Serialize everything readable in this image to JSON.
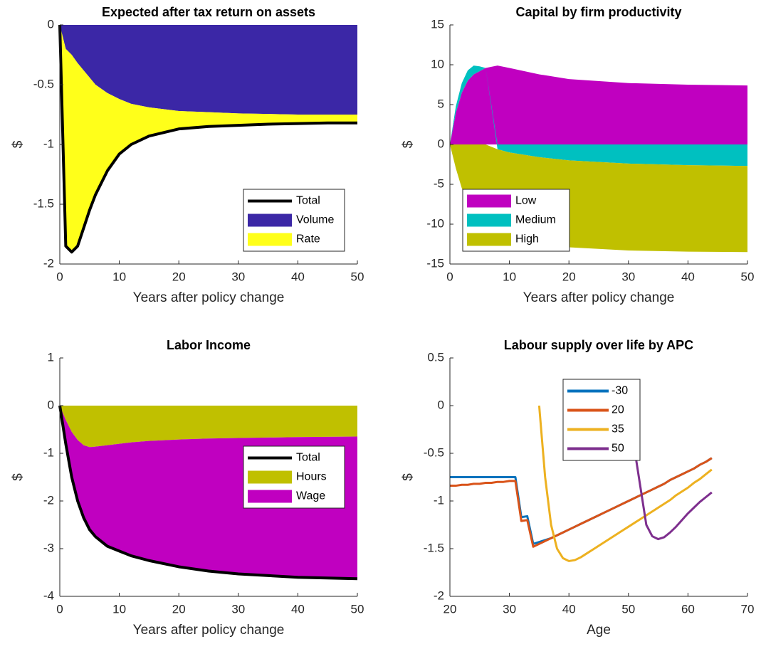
{
  "chart_data": [
    {
      "type": "area",
      "title": "Expected after tax return on assets",
      "xlabel": "Years after policy change",
      "ylabel": "$",
      "x": [
        0,
        1,
        2,
        3,
        4,
        5,
        6,
        8,
        10,
        12,
        15,
        20,
        25,
        30,
        35,
        40,
        45,
        50
      ],
      "series": [
        {
          "name": "Total",
          "type": "line",
          "color": "#000000",
          "values": [
            0,
            -1.85,
            -1.9,
            -1.85,
            -1.7,
            -1.55,
            -1.42,
            -1.22,
            -1.08,
            -1.0,
            -0.93,
            -0.87,
            -0.85,
            -0.84,
            -0.83,
            -0.825,
            -0.82,
            -0.82
          ]
        },
        {
          "name": "Volume",
          "type": "area",
          "color": "#3b27a6",
          "values": [
            0,
            -0.2,
            -0.25,
            -0.32,
            -0.38,
            -0.44,
            -0.5,
            -0.57,
            -0.62,
            -0.66,
            -0.69,
            -0.72,
            -0.73,
            -0.74,
            -0.745,
            -0.75,
            -0.75,
            -0.75
          ]
        },
        {
          "name": "Rate",
          "type": "area",
          "color": "#ffff1a",
          "values": [
            0,
            -1.65,
            -1.65,
            -1.53,
            -1.32,
            -1.11,
            -0.92,
            -0.65,
            -0.46,
            -0.34,
            -0.24,
            -0.15,
            -0.12,
            -0.1,
            -0.085,
            -0.075,
            -0.07,
            -0.07
          ]
        }
      ],
      "xlim": [
        0,
        50
      ],
      "xticks": [
        0,
        10,
        20,
        30,
        40,
        50
      ],
      "ylim": [
        -2,
        0
      ],
      "yticks": [
        -2,
        -1.5,
        -1,
        -0.5,
        0
      ],
      "legend": "lower right"
    },
    {
      "type": "area",
      "title": "Capital by firm productivity",
      "xlabel": "Years after policy change",
      "ylabel": "$",
      "x": [
        0,
        1,
        2,
        3,
        4,
        5,
        6,
        8,
        10,
        15,
        20,
        30,
        40,
        50
      ],
      "series": [
        {
          "name": "Low",
          "type": "area",
          "color": "#c000c0",
          "values": [
            0,
            4,
            6.5,
            8,
            8.8,
            9.2,
            9.6,
            9.9,
            9.6,
            8.8,
            8.2,
            7.7,
            7.5,
            7.4
          ]
        },
        {
          "name": "Medium",
          "type": "area",
          "color": "#00c0c0",
          "values": [
            0,
            0.8,
            1.2,
            1.3,
            1.1,
            0.6,
            0,
            -0.6,
            -1.0,
            -1.6,
            -2.0,
            -2.4,
            -2.6,
            -2.7
          ]
        },
        {
          "name": "High",
          "type": "area",
          "color": "#c0c000",
          "values": [
            0,
            -3,
            -5.5,
            -7,
            -8.2,
            -9,
            -9.8,
            -10.2,
            -10.5,
            -10.8,
            -10.9,
            -10.9,
            -10.85,
            -10.8
          ]
        }
      ],
      "xlim": [
        0,
        50
      ],
      "xticks": [
        0,
        10,
        20,
        30,
        40,
        50
      ],
      "ylim": [
        -15,
        15
      ],
      "yticks": [
        -15,
        -10,
        -5,
        0,
        5,
        10,
        15
      ],
      "legend": "lower left"
    },
    {
      "type": "area",
      "title": "Labor Income",
      "xlabel": "Years after policy change",
      "ylabel": "$",
      "x": [
        0,
        1,
        2,
        3,
        4,
        5,
        6,
        8,
        10,
        12,
        15,
        20,
        25,
        30,
        40,
        50
      ],
      "series": [
        {
          "name": "Total",
          "type": "line",
          "color": "#000000",
          "values": [
            0,
            -0.8,
            -1.5,
            -2.0,
            -2.35,
            -2.6,
            -2.75,
            -2.95,
            -3.05,
            -3.15,
            -3.25,
            -3.38,
            -3.47,
            -3.53,
            -3.6,
            -3.63
          ]
        },
        {
          "name": "Hours",
          "type": "area",
          "color": "#c0c000",
          "values": [
            0,
            -0.3,
            -0.55,
            -0.72,
            -0.83,
            -0.87,
            -0.86,
            -0.83,
            -0.8,
            -0.77,
            -0.74,
            -0.71,
            -0.69,
            -0.68,
            -0.66,
            -0.65
          ]
        },
        {
          "name": "Wage",
          "type": "area",
          "color": "#c000c0",
          "values": [
            0,
            -0.5,
            -0.95,
            -1.28,
            -1.52,
            -1.73,
            -1.89,
            -2.12,
            -2.25,
            -2.38,
            -2.51,
            -2.67,
            -2.78,
            -2.85,
            -2.94,
            -2.98
          ]
        }
      ],
      "xlim": [
        0,
        50
      ],
      "xticks": [
        0,
        10,
        20,
        30,
        40,
        50
      ],
      "ylim": [
        -4,
        1
      ],
      "yticks": [
        -4,
        -3,
        -2,
        -1,
        0,
        1
      ],
      "legend": "right"
    },
    {
      "type": "line",
      "title": "Labour supply over life by APC",
      "xlabel": "Age",
      "ylabel": "$",
      "x": [
        20,
        21,
        22,
        23,
        24,
        25,
        26,
        27,
        28,
        29,
        30,
        31,
        32,
        33,
        34,
        35,
        36,
        37,
        38,
        39,
        40,
        41,
        42,
        43,
        44,
        45,
        46,
        47,
        48,
        49,
        50,
        51,
        52,
        53,
        54,
        55,
        56,
        57,
        58,
        59,
        60,
        61,
        62,
        63,
        64
      ],
      "series": [
        {
          "name": "-30",
          "color": "#0072bd",
          "values": [
            -0.75,
            -0.75,
            -0.75,
            -0.75,
            -0.75,
            -0.75,
            -0.75,
            -0.75,
            -0.75,
            -0.75,
            -0.75,
            -0.75,
            -1.17,
            -1.16,
            -1.45,
            -1.43,
            -1.41,
            -1.39,
            -1.36,
            -1.33,
            -1.3,
            -1.27,
            -1.24,
            -1.21,
            -1.18,
            -1.15,
            -1.12,
            -1.09,
            -1.06,
            -1.03,
            -1.0,
            -0.97,
            -0.94,
            -0.91,
            -0.88,
            -0.85,
            -0.82,
            -0.78,
            -0.75,
            -0.72,
            -0.69,
            -0.66,
            -0.62,
            -0.59,
            -0.55
          ]
        },
        {
          "name": "20",
          "color": "#d95319",
          "values": [
            -0.84,
            -0.84,
            -0.83,
            -0.83,
            -0.82,
            -0.82,
            -0.81,
            -0.81,
            -0.8,
            -0.8,
            -0.79,
            -0.79,
            -1.21,
            -1.2,
            -1.48,
            -1.45,
            -1.42,
            -1.39,
            -1.36,
            -1.33,
            -1.3,
            -1.27,
            -1.24,
            -1.21,
            -1.18,
            -1.15,
            -1.12,
            -1.09,
            -1.06,
            -1.03,
            -1.0,
            -0.97,
            -0.94,
            -0.91,
            -0.88,
            -0.85,
            -0.82,
            -0.78,
            -0.75,
            -0.72,
            -0.69,
            -0.66,
            -0.62,
            -0.59,
            -0.55
          ]
        },
        {
          "name": "35",
          "color": "#edb120",
          "values": [
            null,
            null,
            null,
            null,
            null,
            null,
            null,
            null,
            null,
            null,
            null,
            null,
            null,
            null,
            null,
            0,
            -0.75,
            -1.25,
            -1.5,
            -1.6,
            -1.63,
            -1.62,
            -1.59,
            -1.55,
            -1.51,
            -1.47,
            -1.43,
            -1.39,
            -1.35,
            -1.31,
            -1.27,
            -1.23,
            -1.19,
            -1.15,
            -1.11,
            -1.07,
            -1.03,
            -0.99,
            -0.94,
            -0.9,
            -0.86,
            -0.81,
            -0.77,
            -0.72,
            -0.67
          ]
        },
        {
          "name": "50",
          "color": "#7e2f8e",
          "values": [
            null,
            null,
            null,
            null,
            null,
            null,
            null,
            null,
            null,
            null,
            null,
            null,
            null,
            null,
            null,
            null,
            null,
            null,
            null,
            null,
            null,
            null,
            null,
            null,
            null,
            null,
            null,
            null,
            null,
            null,
            0,
            -0.45,
            -0.85,
            -1.25,
            -1.37,
            -1.4,
            -1.38,
            -1.33,
            -1.27,
            -1.2,
            -1.13,
            -1.07,
            -1.01,
            -0.96,
            -0.91
          ]
        }
      ],
      "xlim": [
        20,
        70
      ],
      "xticks": [
        20,
        30,
        40,
        50,
        60,
        70
      ],
      "ylim": [
        -2,
        0.5
      ],
      "yticks": [
        -2,
        -1.5,
        -1,
        -0.5,
        0,
        0.5
      ],
      "legend": "upper center"
    }
  ]
}
